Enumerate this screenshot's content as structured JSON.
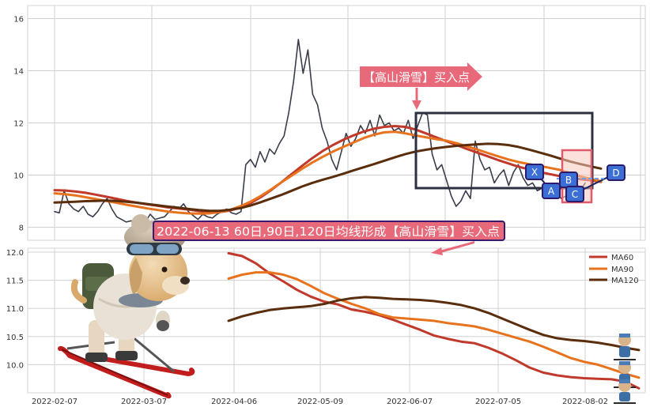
{
  "annotations": {
    "callout_top": "【高山滑雪】买入点",
    "callout_bottom": "2022-06-13 60日,90日,120日均线形成【高山滑雪】买入点",
    "point_labels": [
      "X",
      "A",
      "B",
      "C",
      "D"
    ]
  },
  "colors": {
    "price": "#3a3d4a",
    "ma60": "#c0392b",
    "ma90": "#e8731e",
    "ma120": "#5a2d0c",
    "callout_fill": "#e86a7a",
    "callout_border": "#3a1a6e",
    "point_fill": "#3b6fd6",
    "point_border": "#2a1b6b",
    "box_stroke": "#2d3040",
    "highlight_stroke": "#e05a6a",
    "highlight_fill": "#f8c9c0"
  },
  "chart_data": [
    {
      "type": "line",
      "panel": "top",
      "ylim": [
        7.5,
        16.5
      ],
      "yticks": [
        "8",
        "10",
        "12",
        "14",
        "16"
      ],
      "grid": true,
      "series": [
        {
          "key": "price",
          "values": [
            8.6,
            8.55,
            9.4,
            8.9,
            8.7,
            8.6,
            8.8,
            8.5,
            8.4,
            8.6,
            8.9,
            9.1,
            8.7,
            8.4,
            8.3,
            8.2,
            8.25,
            8.15,
            8.3,
            8.2,
            8.5,
            8.3,
            8.35,
            8.4,
            8.6,
            8.8,
            8.7,
            8.9,
            8.6,
            8.45,
            8.3,
            8.5,
            8.4,
            8.35,
            8.5,
            8.6,
            8.7,
            8.55,
            8.5,
            8.6,
            10.4,
            10.6,
            10.3,
            10.9,
            10.5,
            11.0,
            10.8,
            11.2,
            11.5,
            12.4,
            13.6,
            15.2,
            13.9,
            14.8,
            13.1,
            12.7,
            11.8,
            11.3,
            10.6,
            10.2,
            10.9,
            11.6,
            11.1,
            11.4,
            11.9,
            11.6,
            12.1,
            11.5,
            12.3,
            11.9,
            12.0,
            11.7,
            11.8,
            11.6,
            12.1,
            11.4,
            11.9,
            12.4,
            12.3,
            10.8,
            10.2,
            10.4,
            9.8,
            9.2,
            8.8,
            9.0,
            9.4,
            9.1,
            11.3,
            10.6,
            10.2,
            10.3,
            9.7,
            10.0,
            10.2,
            9.6,
            10.1,
            10.4,
            9.9,
            9.6,
            9.7,
            9.4,
            9.5,
            9.6,
            9.4,
            9.3,
            9.1,
            9.2,
            9.5,
            9.8,
            9.4,
            9.7
          ]
        },
        {
          "key": "ma60",
          "values": [
            9.42,
            9.41,
            9.37,
            9.32,
            9.25,
            9.17,
            9.09,
            9.01,
            8.94,
            8.88,
            8.82,
            8.76,
            8.72,
            8.68,
            8.62,
            8.58,
            8.58,
            8.64,
            8.75,
            8.92,
            9.15,
            9.42,
            9.72,
            10.04,
            10.35,
            10.65,
            10.92,
            11.15,
            11.35,
            11.52,
            11.67,
            11.78,
            11.85,
            11.88,
            11.85,
            11.75,
            11.6,
            11.45,
            11.3,
            11.15,
            11.0,
            10.86,
            10.72,
            10.58,
            10.45,
            10.32,
            10.22,
            10.12,
            10.04,
            9.96,
            9.9,
            9.84,
            9.8,
            9.74
          ]
        },
        {
          "key": "ma90",
          "values": [
            9.3,
            9.27,
            9.22,
            9.15,
            9.08,
            9.01,
            8.94,
            8.86,
            8.79,
            8.72,
            8.66,
            8.6,
            8.56,
            8.53,
            8.52,
            8.53,
            8.58,
            8.66,
            8.8,
            8.98,
            9.2,
            9.45,
            9.72,
            9.98,
            10.24,
            10.48,
            10.7,
            10.9,
            11.08,
            11.25,
            11.42,
            11.55,
            11.64,
            11.66,
            11.6,
            11.52,
            11.45,
            11.38,
            11.32,
            11.22,
            11.1,
            10.98,
            10.85,
            10.72,
            10.6,
            10.5,
            10.42,
            10.35,
            10.28,
            10.2,
            10.08,
            9.95,
            9.85,
            9.76
          ]
        },
        {
          "key": "ma120",
          "values": [
            8.95,
            8.96,
            8.98,
            9.0,
            9.01,
            9.02,
            9.01,
            8.98,
            8.94,
            8.89,
            8.84,
            8.79,
            8.75,
            8.7,
            8.66,
            8.63,
            8.63,
            8.67,
            8.73,
            8.83,
            8.96,
            9.1,
            9.24,
            9.4,
            9.56,
            9.7,
            9.82,
            9.93,
            10.05,
            10.18,
            10.3,
            10.42,
            10.55,
            10.68,
            10.8,
            10.9,
            10.97,
            11.03,
            11.08,
            11.12,
            11.15,
            11.18,
            11.2,
            11.19,
            11.15,
            11.08,
            10.98,
            10.87,
            10.76,
            10.64,
            10.52,
            10.42,
            10.33,
            10.25
          ]
        }
      ]
    },
    {
      "type": "line",
      "panel": "bottom",
      "ylim": [
        9.5,
        12.07
      ],
      "yticks": [
        "10.0",
        "10.5",
        "11.0",
        "11.5",
        "12.0"
      ],
      "grid": true,
      "legend": "top-right",
      "x_ticks": [
        "2022-02-07",
        "2022-03-07",
        "2022-04-06",
        "2022-05-09",
        "2022-06-07",
        "2022-07-05",
        "2022-08-02"
      ],
      "series": [
        {
          "name": "MA60",
          "key": "ma60",
          "values": [
            11.98,
            11.93,
            11.8,
            11.62,
            11.48,
            11.33,
            11.21,
            11.12,
            11.07,
            10.98,
            10.94,
            10.88,
            10.8,
            10.71,
            10.62,
            10.52,
            10.46,
            10.41,
            10.38,
            10.3,
            10.2,
            10.08,
            9.95,
            9.86,
            9.81,
            9.78,
            9.76,
            9.75,
            9.74,
            9.7,
            9.58
          ]
        },
        {
          "name": "MA90",
          "key": "ma90",
          "values": [
            11.53,
            11.6,
            11.64,
            11.64,
            11.6,
            11.52,
            11.4,
            11.27,
            11.17,
            11.08,
            11.0,
            10.9,
            10.84,
            10.82,
            10.8,
            10.78,
            10.74,
            10.71,
            10.68,
            10.62,
            10.55,
            10.48,
            10.41,
            10.32,
            10.22,
            10.12,
            10.05,
            10.0,
            9.92,
            9.84,
            9.77
          ]
        },
        {
          "name": "MA120",
          "key": "ma120",
          "values": [
            10.78,
            10.86,
            10.92,
            10.97,
            11.0,
            11.02,
            11.04,
            11.08,
            11.14,
            11.18,
            11.2,
            11.19,
            11.17,
            11.16,
            11.15,
            11.13,
            11.1,
            11.06,
            11.0,
            10.92,
            10.82,
            10.72,
            10.62,
            10.53,
            10.47,
            10.44,
            10.42,
            10.39,
            10.35,
            10.3,
            10.26
          ]
        }
      ]
    }
  ]
}
